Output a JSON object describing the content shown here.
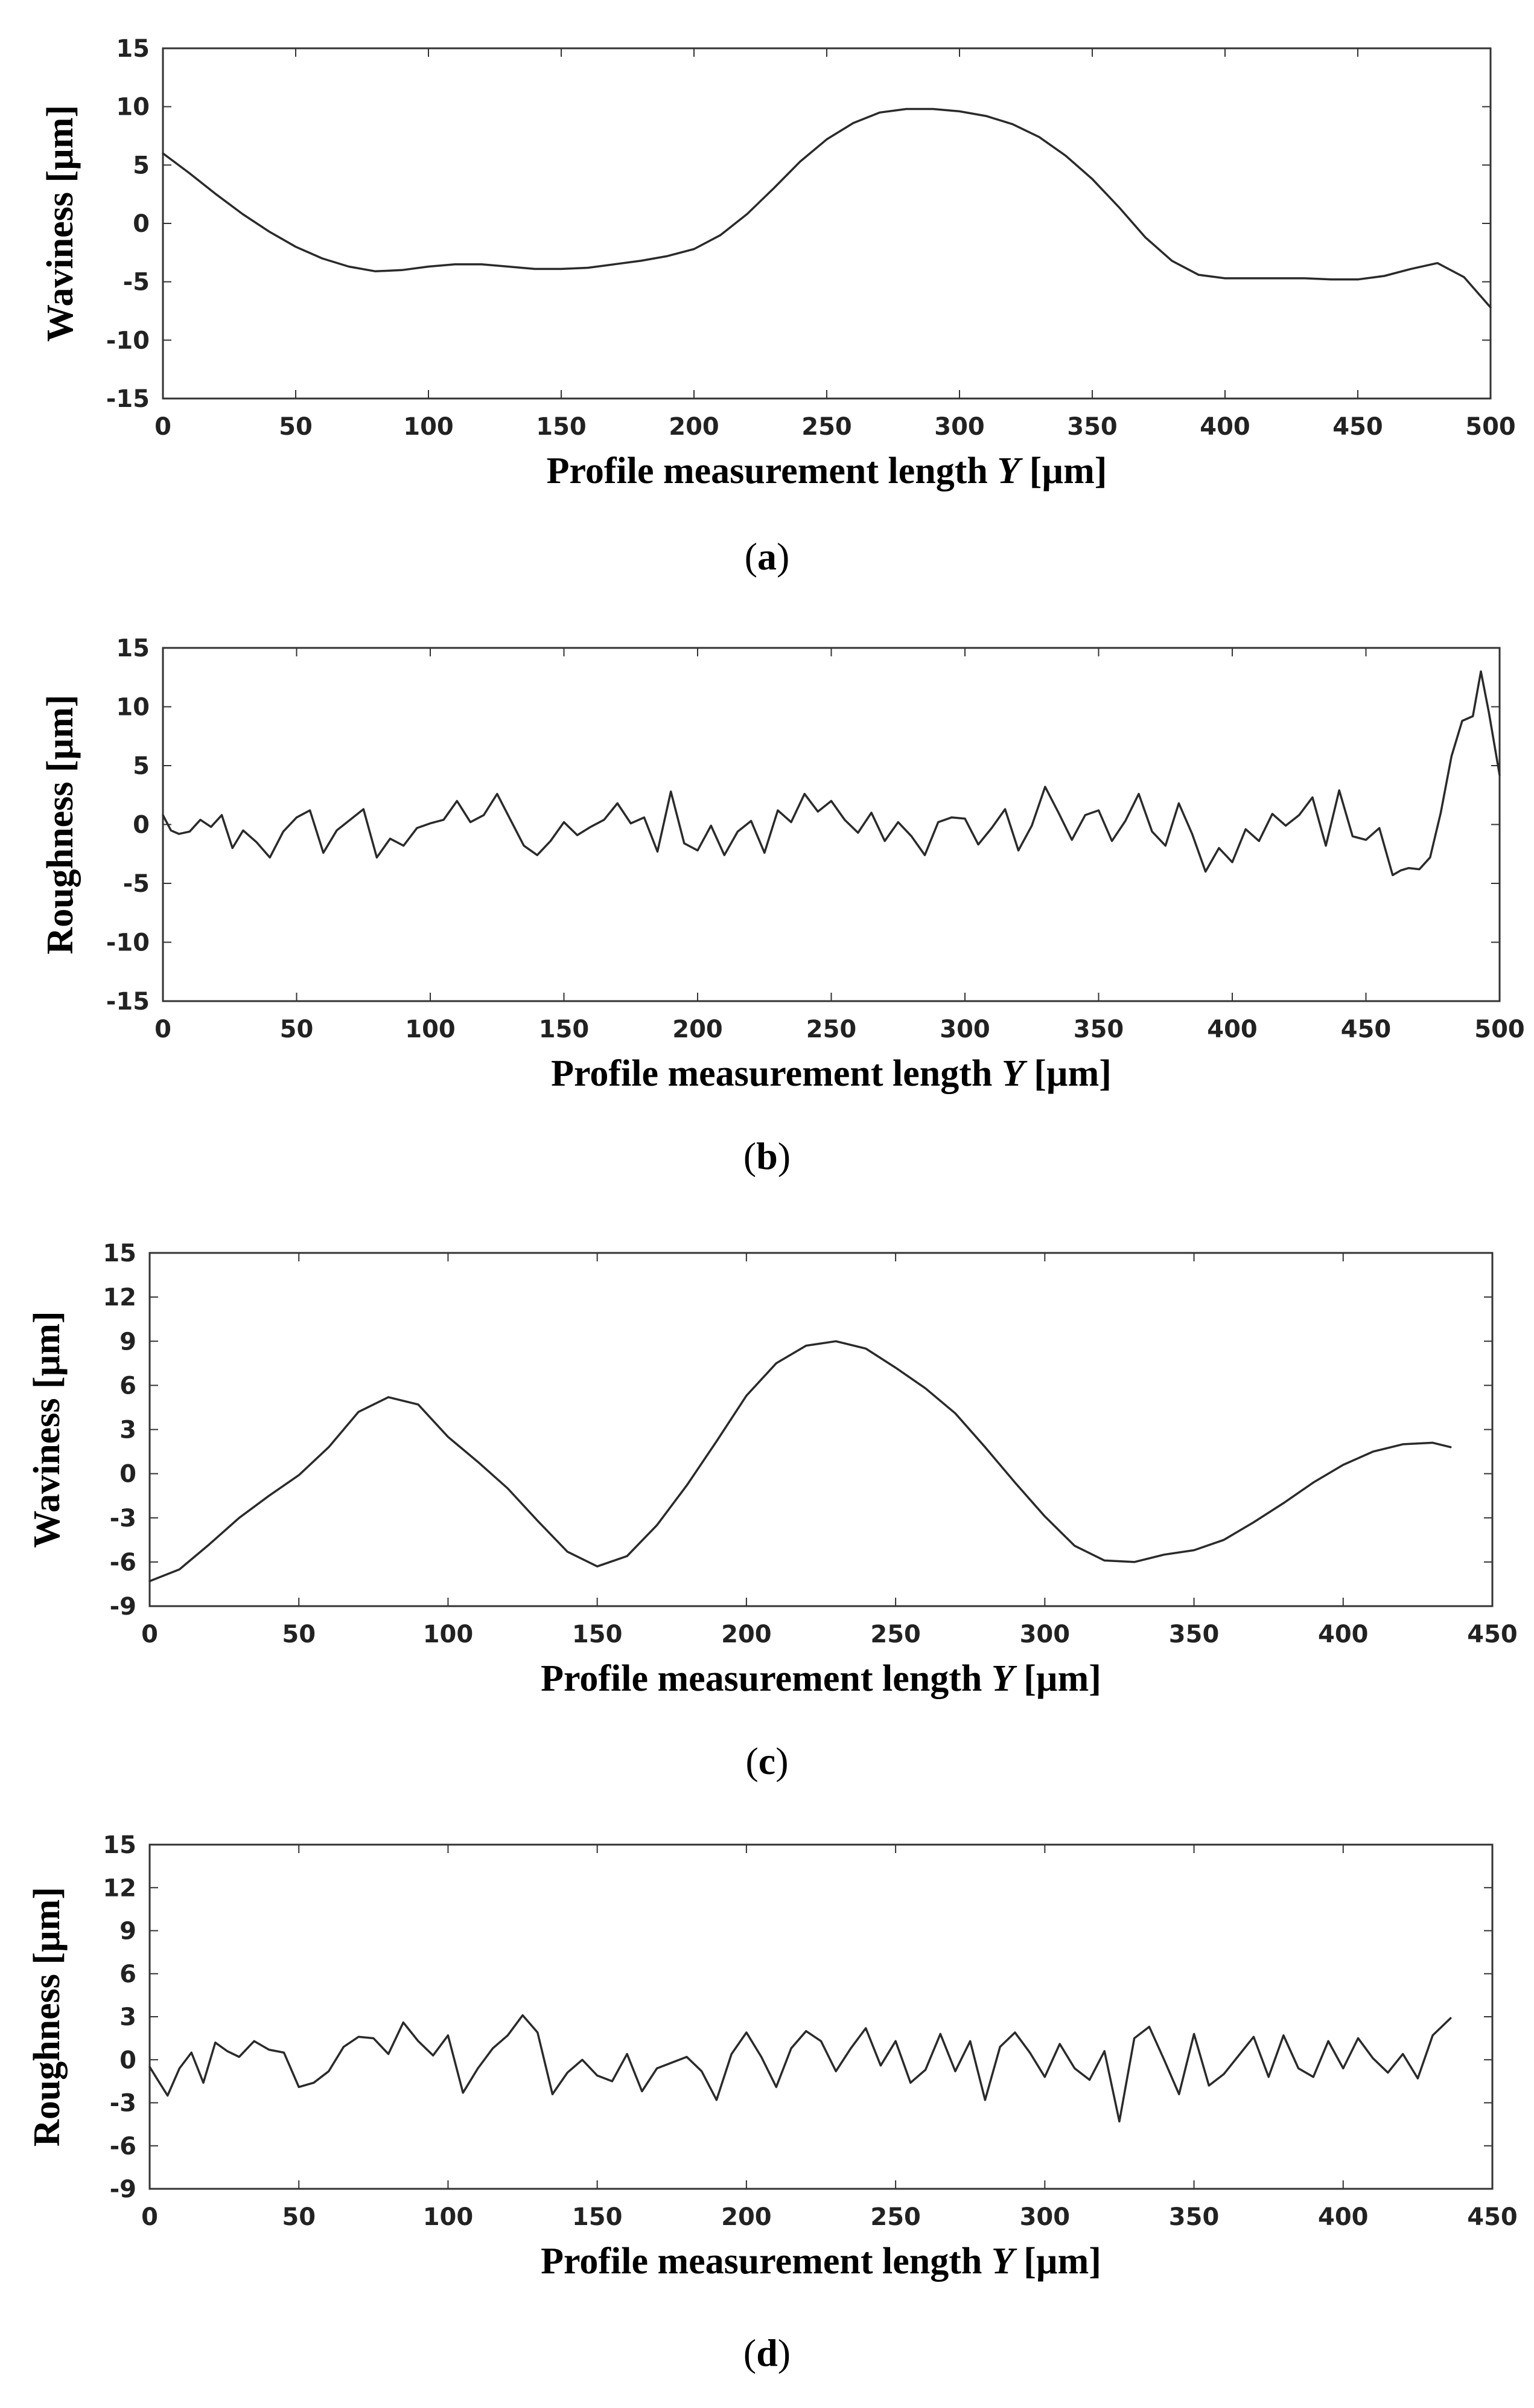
{
  "chart_data": [
    {
      "id": "a",
      "type": "line",
      "caption_letter": "a",
      "ylabel": "Waviness [µm]",
      "xlabel_prefix": "Profile measurement length ",
      "xlabel_var": "Y",
      "xlabel_unit": " [µm]",
      "xlim": [
        0,
        500
      ],
      "ylim": [
        -15,
        15
      ],
      "xticks": [
        0,
        50,
        100,
        150,
        200,
        250,
        300,
        350,
        400,
        450,
        500
      ],
      "yticks": [
        15,
        10,
        5,
        0,
        -5,
        -10,
        -15
      ],
      "grid": false,
      "series": [
        {
          "name": "Waviness",
          "x": [
            0,
            10,
            20,
            30,
            40,
            50,
            60,
            70,
            80,
            90,
            100,
            110,
            120,
            130,
            140,
            150,
            160,
            170,
            180,
            190,
            200,
            210,
            220,
            230,
            240,
            250,
            260,
            270,
            280,
            290,
            300,
            310,
            320,
            330,
            340,
            350,
            360,
            370,
            380,
            390,
            400,
            410,
            420,
            430,
            440,
            450,
            460,
            470,
            480,
            490,
            500
          ],
          "y": [
            6,
            4.3,
            2.5,
            0.8,
            -0.7,
            -2,
            -3,
            -3.7,
            -4.1,
            -4,
            -3.7,
            -3.5,
            -3.5,
            -3.7,
            -3.9,
            -3.9,
            -3.8,
            -3.5,
            -3.2,
            -2.8,
            -2.2,
            -1,
            0.8,
            3,
            5.3,
            7.2,
            8.6,
            9.5,
            9.8,
            9.8,
            9.6,
            9.2,
            8.5,
            7.4,
            5.8,
            3.8,
            1.4,
            -1.2,
            -3.2,
            -4.4,
            -4.7,
            -4.7,
            -4.7,
            -4.7,
            -4.8,
            -4.8,
            -4.5,
            -3.9,
            -3.4,
            -4.6,
            -7.2
          ]
        }
      ]
    },
    {
      "id": "b",
      "type": "line",
      "caption_letter": "b",
      "ylabel": "Roughness [µm]",
      "xlabel_prefix": "Profile measurement length ",
      "xlabel_var": "Y",
      "xlabel_unit": " [µm]",
      "xlim": [
        0,
        500
      ],
      "ylim": [
        -15,
        15
      ],
      "xticks": [
        0,
        50,
        100,
        150,
        200,
        250,
        300,
        350,
        400,
        450,
        500
      ],
      "yticks": [
        15,
        10,
        5,
        0,
        -5,
        -10,
        -15
      ],
      "grid": false,
      "series": [
        {
          "name": "Roughness",
          "x": [
            0,
            3,
            6,
            10,
            14,
            18,
            22,
            26,
            30,
            35,
            40,
            45,
            50,
            55,
            60,
            65,
            70,
            75,
            80,
            85,
            90,
            95,
            100,
            105,
            110,
            115,
            120,
            125,
            130,
            135,
            140,
            145,
            150,
            155,
            160,
            165,
            170,
            175,
            180,
            185,
            190,
            195,
            200,
            205,
            210,
            215,
            220,
            225,
            230,
            235,
            240,
            245,
            250,
            255,
            260,
            265,
            270,
            275,
            280,
            285,
            290,
            295,
            300,
            305,
            310,
            315,
            320,
            325,
            330,
            335,
            340,
            345,
            350,
            355,
            360,
            365,
            370,
            375,
            380,
            385,
            390,
            395,
            400,
            405,
            410,
            415,
            420,
            425,
            430,
            435,
            440,
            445,
            450,
            455,
            460,
            463,
            466,
            470,
            474,
            478,
            482,
            486,
            490,
            493,
            496,
            500
          ],
          "y": [
            0.8,
            -0.5,
            -0.8,
            -0.6,
            0.4,
            -0.2,
            0.8,
            -2,
            -0.5,
            -1.5,
            -2.8,
            -0.6,
            0.6,
            1.2,
            -2.4,
            -0.5,
            0.4,
            1.3,
            -2.8,
            -1.2,
            -1.8,
            -0.3,
            0.1,
            0.4,
            2,
            0.2,
            0.8,
            2.6,
            0.4,
            -1.8,
            -2.6,
            -1.4,
            0.2,
            -0.9,
            -0.2,
            0.4,
            1.8,
            0.1,
            0.6,
            -2.3,
            2.8,
            -1.6,
            -2.2,
            -0.1,
            -2.6,
            -0.6,
            0.3,
            -2.4,
            1.2,
            0.2,
            2.6,
            1.1,
            2,
            0.4,
            -0.7,
            1,
            -1.4,
            0.2,
            -1,
            -2.6,
            0.2,
            0.6,
            0.5,
            -1.7,
            -0.3,
            1.3,
            -2.2,
            -0.1,
            3.2,
            1,
            -1.3,
            0.8,
            1.2,
            -1.4,
            0.3,
            2.6,
            -0.6,
            -1.8,
            1.8,
            -0.8,
            -4,
            -2,
            -3.2,
            -0.4,
            -1.4,
            0.9,
            -0.1,
            0.8,
            2.3,
            -1.8,
            2.9,
            -1,
            -1.3,
            -0.3,
            -4.3,
            -3.9,
            -3.7,
            -3.8,
            -2.8,
            1,
            5.8,
            8.8,
            9.2,
            13,
            9.5,
            4.2
          ]
        }
      ]
    },
    {
      "id": "c",
      "type": "line",
      "caption_letter": "c",
      "ylabel": "Waviness [µm]",
      "xlabel_prefix": "Profile measurement length ",
      "xlabel_var": "Y",
      "xlabel_unit": " [µm]",
      "xlim": [
        0,
        450
      ],
      "ylim": [
        -9,
        15
      ],
      "xticks": [
        0,
        50,
        100,
        150,
        200,
        250,
        300,
        350,
        400,
        450
      ],
      "yticks": [
        15,
        12,
        9,
        6,
        3,
        0,
        -3,
        -6,
        -9
      ],
      "grid": false,
      "series": [
        {
          "name": "Waviness",
          "x": [
            0,
            10,
            20,
            30,
            40,
            50,
            60,
            70,
            80,
            90,
            100,
            110,
            120,
            130,
            140,
            150,
            160,
            170,
            180,
            190,
            200,
            210,
            220,
            230,
            240,
            250,
            260,
            270,
            280,
            290,
            300,
            310,
            320,
            330,
            340,
            350,
            360,
            370,
            380,
            390,
            400,
            410,
            420,
            430,
            436
          ],
          "y": [
            -7.3,
            -6.5,
            -4.8,
            -3,
            -1.5,
            -0.1,
            1.8,
            4.2,
            5.2,
            4.7,
            2.5,
            0.8,
            -1,
            -3.2,
            -5.3,
            -6.3,
            -5.6,
            -3.5,
            -0.8,
            2.2,
            5.3,
            7.5,
            8.7,
            9,
            8.5,
            7.2,
            5.8,
            4.1,
            1.8,
            -0.6,
            -2.9,
            -4.9,
            -5.9,
            -6,
            -5.5,
            -5.2,
            -4.5,
            -3.3,
            -2,
            -0.6,
            0.6,
            1.5,
            2,
            2.1,
            1.8
          ]
        }
      ]
    },
    {
      "id": "d",
      "type": "line",
      "caption_letter": "d",
      "ylabel": "Roughness [µm]",
      "xlabel_prefix": "Profile measurement length ",
      "xlabel_var": "Y",
      "xlabel_unit": " [µm]",
      "xlim": [
        0,
        450
      ],
      "ylim": [
        -9,
        15
      ],
      "xticks": [
        0,
        50,
        100,
        150,
        200,
        250,
        300,
        350,
        400,
        450
      ],
      "yticks": [
        15,
        12,
        9,
        6,
        3,
        0,
        -3,
        -6,
        -9
      ],
      "grid": false,
      "series": [
        {
          "name": "Roughness",
          "x": [
            0,
            3,
            6,
            10,
            14,
            18,
            22,
            26,
            30,
            35,
            40,
            45,
            50,
            55,
            60,
            65,
            70,
            75,
            80,
            85,
            90,
            95,
            100,
            105,
            110,
            115,
            120,
            125,
            130,
            135,
            140,
            145,
            150,
            155,
            160,
            165,
            170,
            175,
            180,
            185,
            190,
            195,
            200,
            205,
            210,
            215,
            220,
            225,
            230,
            235,
            240,
            245,
            250,
            255,
            260,
            265,
            270,
            275,
            280,
            285,
            290,
            295,
            300,
            305,
            310,
            315,
            320,
            325,
            330,
            335,
            340,
            345,
            350,
            355,
            360,
            365,
            370,
            375,
            380,
            385,
            390,
            395,
            400,
            405,
            410,
            415,
            420,
            425,
            430,
            436
          ],
          "y": [
            -0.5,
            -1.5,
            -2.5,
            -0.6,
            0.5,
            -1.6,
            1.2,
            0.6,
            0.2,
            1.3,
            0.7,
            0.5,
            -1.9,
            -1.6,
            -0.8,
            0.9,
            1.6,
            1.5,
            0.4,
            2.6,
            1.3,
            0.3,
            1.7,
            -2.3,
            -0.6,
            0.8,
            1.7,
            3.1,
            1.9,
            -2.4,
            -0.9,
            0,
            -1.1,
            -1.5,
            0.4,
            -2.2,
            -0.6,
            -0.2,
            0.2,
            -0.8,
            -2.8,
            0.4,
            1.9,
            0.2,
            -1.9,
            0.8,
            2,
            1.3,
            -0.8,
            0.8,
            2.2,
            -0.4,
            1.3,
            -1.6,
            -0.7,
            1.8,
            -0.8,
            1.3,
            -2.8,
            0.9,
            1.9,
            0.5,
            -1.2,
            1.1,
            -0.6,
            -1.4,
            0.6,
            -4.3,
            1.5,
            2.3,
            0,
            -2.4,
            1.8,
            -1.8,
            -1,
            0.3,
            1.6,
            -1.2,
            1.7,
            -0.6,
            -1.2,
            1.3,
            -0.6,
            1.5,
            0.1,
            -0.9,
            0.4,
            -1.3,
            1.7,
            2.9
          ]
        }
      ]
    }
  ]
}
